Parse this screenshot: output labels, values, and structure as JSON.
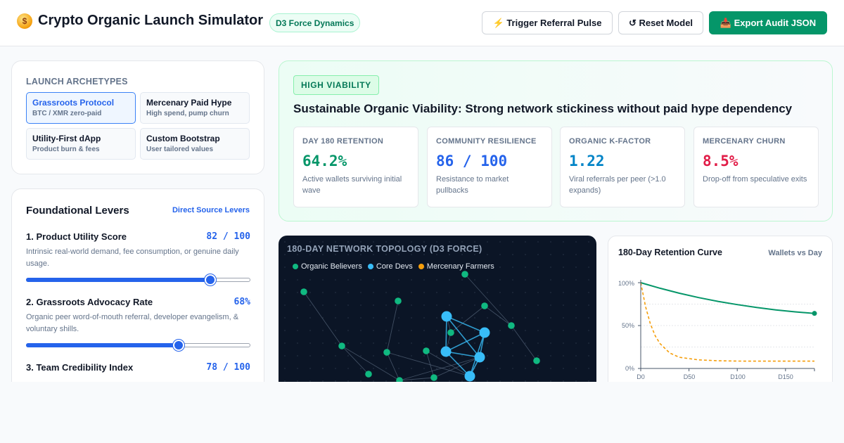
{
  "header": {
    "title": "Crypto Organic Launch Simulator",
    "engine_badge": "D3 Force Dynamics",
    "buttons": {
      "trigger": "⚡ Trigger Referral Pulse",
      "reset": "↺ Reset Model",
      "export": "📥 Export Audit JSON"
    }
  },
  "archetypes": {
    "label": "LAUNCH ARCHETYPES",
    "items": [
      {
        "name": "Grassroots Protocol",
        "sub": "BTC / XMR zero-paid",
        "active": true
      },
      {
        "name": "Mercenary Paid Hype",
        "sub": "High spend, pump churn",
        "active": false
      },
      {
        "name": "Utility-First dApp",
        "sub": "Product burn & fees",
        "active": false
      },
      {
        "name": "Custom Bootstrap",
        "sub": "User tailored values",
        "active": false
      }
    ]
  },
  "levers": {
    "title": "Foundational Levers",
    "link": "Direct Source Levers",
    "items": [
      {
        "name": "1. Product Utility Score",
        "value": "82 / 100",
        "level": 0.82,
        "desc": "Intrinsic real-world demand, fee consumption, or genuine daily usage."
      },
      {
        "name": "2. Grassroots Advocacy Rate",
        "value": "68%",
        "level": 0.68,
        "desc": "Organic peer word-of-mouth referral, developer evangelism, & voluntary shills."
      },
      {
        "name": "3. Team Credibility Index",
        "value": "78 / 100",
        "level": 0.78,
        "desc": ""
      }
    ]
  },
  "viability": {
    "badge": "HIGH VIABILITY",
    "headline": "Sustainable Organic Viability: Strong network stickiness without paid hype dependency",
    "metrics": [
      {
        "label": "DAY 180 RETENTION",
        "value": "64.2%",
        "desc": "Active wallets surviving initial wave",
        "color": "#059669"
      },
      {
        "label": "COMMUNITY RESILIENCE",
        "value": "86 / 100",
        "desc": "Resistance to market pullbacks",
        "color": "#2563eb"
      },
      {
        "label": "ORGANIC K-FACTOR",
        "value": "1.22",
        "desc": "Viral referrals per peer (>1.0 expands)",
        "color": "#0284c7"
      },
      {
        "label": "MERCENARY CHURN",
        "value": "8.5%",
        "desc": "Drop-off from speculative exits",
        "color": "#e11d48"
      }
    ]
  },
  "network": {
    "title": "180-DAY NETWORK TOPOLOGY (D3 FORCE)",
    "legend": [
      {
        "label": "Organic Believers",
        "color": "#10b981"
      },
      {
        "label": "Core Devs",
        "color": "#38bdf8"
      },
      {
        "label": "Mercenary Farmers",
        "color": "#f59e0b"
      }
    ]
  },
  "retention": {
    "title": "180-Day Retention Curve",
    "subtitle": "Wallets vs Day",
    "y_ticks": [
      "100%",
      "50%",
      "0%"
    ],
    "x_ticks": [
      "D0",
      "D50",
      "D100",
      "D150"
    ],
    "chart_data": {
      "type": "line",
      "xlim": [
        0,
        180
      ],
      "ylim": [
        0,
        100
      ],
      "series": [
        {
          "color": "#059669",
          "x": [
            0,
            20,
            40,
            60,
            80,
            100,
            120,
            140,
            160,
            180
          ],
          "y": [
            100,
            93.5,
            87.7,
            82.6,
            78.2,
            74.4,
            71.1,
            68.3,
            66.0,
            64.2
          ],
          "style": "solid"
        },
        {
          "color": "#f59e0b",
          "x": [
            0,
            5,
            10,
            15,
            20,
            30,
            40,
            60,
            80,
            100,
            140,
            180
          ],
          "y": [
            100,
            72,
            52,
            38,
            29,
            18,
            13,
            10,
            9,
            8.6,
            8.5,
            8.5
          ],
          "style": "dashed"
        }
      ]
    }
  }
}
